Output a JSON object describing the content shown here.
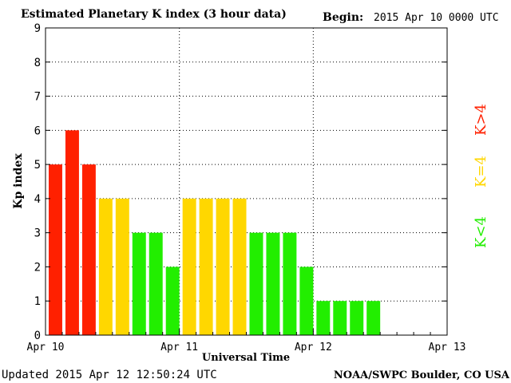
{
  "chart_data": {
    "type": "bar",
    "title": "Estimated Planetary K index (3 hour data)",
    "begin_label": "Begin:",
    "begin_value": "2015 Apr 10 0000 UTC",
    "xlabel": "Universal Time",
    "ylabel": "Kp index",
    "ylim": [
      0,
      9
    ],
    "yticks": [
      "0",
      "1",
      "2",
      "3",
      "4",
      "5",
      "6",
      "7",
      "8",
      "9"
    ],
    "xticks": [
      "Apr 10",
      "Apr 11",
      "Apr 12",
      "Apr 13"
    ],
    "bars_per_day": 8,
    "total_days": 3,
    "grid": true,
    "values": [
      5,
      6,
      5,
      4,
      4,
      3,
      3,
      2,
      4,
      4,
      4,
      4,
      3,
      3,
      3,
      2,
      1,
      1,
      1,
      1
    ],
    "colors": {
      "high": "#ff2000",
      "mid": "#ffd700",
      "low": "#22ee00"
    },
    "legend": [
      {
        "label": "K>4",
        "color": "#ff2000"
      },
      {
        "label": "K=4",
        "color": "#ffd700"
      },
      {
        "label": "K<4",
        "color": "#22ee00"
      }
    ]
  },
  "footer": {
    "updated": "Updated 2015 Apr 12 12:50:24 UTC",
    "source": "NOAA/SWPC Boulder, CO USA"
  }
}
